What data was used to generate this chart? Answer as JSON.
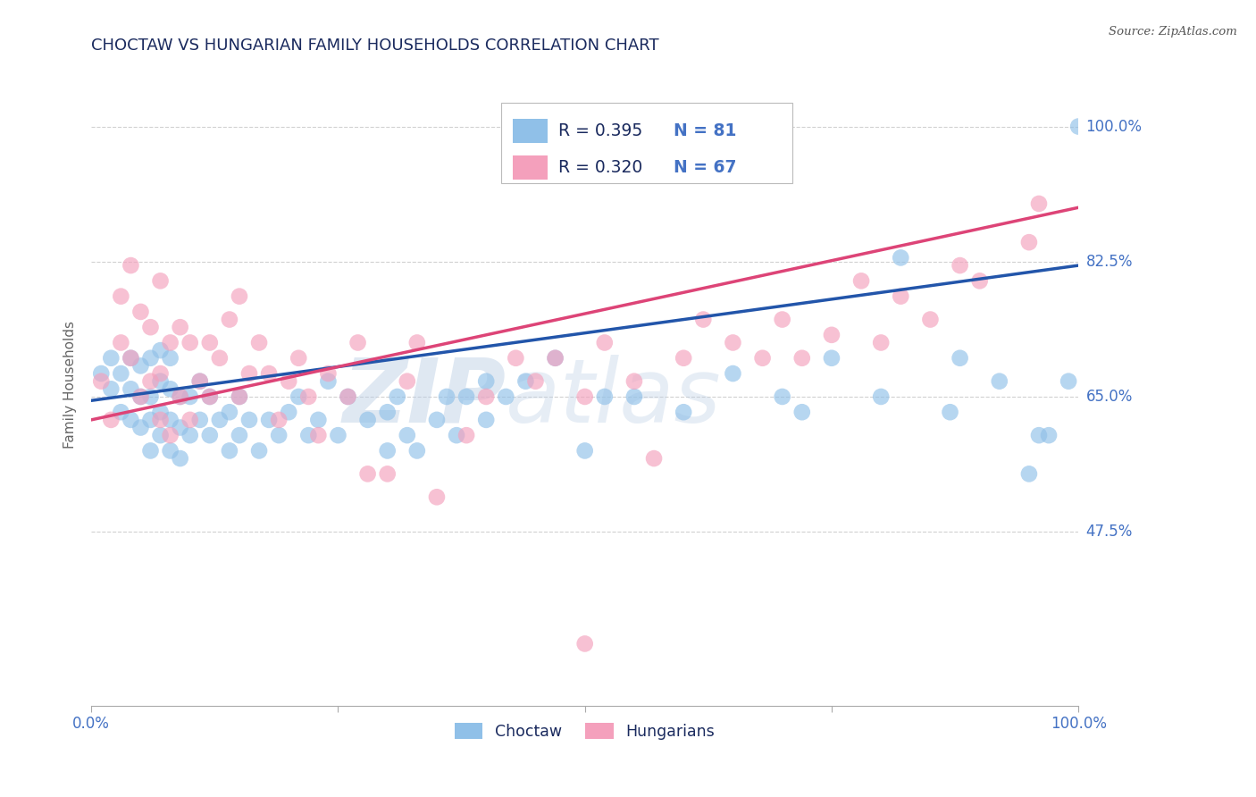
{
  "title": "CHOCTAW VS HUNGARIAN FAMILY HOUSEHOLDS CORRELATION CHART",
  "source": "Source: ZipAtlas.com",
  "ylabel": "Family Households",
  "xlim": [
    0.0,
    1.0
  ],
  "ylim": [
    0.25,
    1.08
  ],
  "y_tick_values": [
    0.475,
    0.65,
    0.825,
    1.0
  ],
  "y_tick_labels": [
    "47.5%",
    "65.0%",
    "82.5%",
    "100.0%"
  ],
  "choctaw_color": "#90C0E8",
  "hungarian_color": "#F4A0BC",
  "choctaw_line_color": "#2255AA",
  "hungarian_line_color": "#DD4477",
  "R_choctaw": 0.395,
  "N_choctaw": 81,
  "R_hungarian": 0.32,
  "N_hungarian": 67,
  "watermark_text": "ZIPatlas",
  "background_color": "#ffffff",
  "grid_color": "#cccccc",
  "title_color": "#1A2A5E",
  "axis_label_color": "#666666",
  "tick_label_color": "#4472C4",
  "legend_text_color": "#1A2A5E",
  "source_color": "#555555",
  "choctaw_x": [
    0.01,
    0.02,
    0.02,
    0.03,
    0.03,
    0.04,
    0.04,
    0.04,
    0.05,
    0.05,
    0.05,
    0.06,
    0.06,
    0.06,
    0.06,
    0.07,
    0.07,
    0.07,
    0.07,
    0.08,
    0.08,
    0.08,
    0.08,
    0.09,
    0.09,
    0.09,
    0.1,
    0.1,
    0.11,
    0.11,
    0.12,
    0.12,
    0.13,
    0.14,
    0.14,
    0.15,
    0.15,
    0.16,
    0.17,
    0.18,
    0.19,
    0.2,
    0.21,
    0.22,
    0.23,
    0.24,
    0.25,
    0.26,
    0.28,
    0.3,
    0.3,
    0.31,
    0.32,
    0.33,
    0.35,
    0.36,
    0.37,
    0.38,
    0.4,
    0.4,
    0.42,
    0.44,
    0.47,
    0.5,
    0.52,
    0.55,
    0.6,
    0.65,
    0.7,
    0.72,
    0.75,
    0.8,
    0.82,
    0.87,
    0.88,
    0.92,
    0.95,
    0.96,
    0.97,
    0.99,
    1.0
  ],
  "choctaw_y": [
    0.68,
    0.66,
    0.7,
    0.63,
    0.68,
    0.62,
    0.66,
    0.7,
    0.61,
    0.65,
    0.69,
    0.58,
    0.62,
    0.65,
    0.7,
    0.6,
    0.63,
    0.67,
    0.71,
    0.58,
    0.62,
    0.66,
    0.7,
    0.57,
    0.61,
    0.65,
    0.6,
    0.65,
    0.62,
    0.67,
    0.6,
    0.65,
    0.62,
    0.58,
    0.63,
    0.6,
    0.65,
    0.62,
    0.58,
    0.62,
    0.6,
    0.63,
    0.65,
    0.6,
    0.62,
    0.67,
    0.6,
    0.65,
    0.62,
    0.58,
    0.63,
    0.65,
    0.6,
    0.58,
    0.62,
    0.65,
    0.6,
    0.65,
    0.62,
    0.67,
    0.65,
    0.67,
    0.7,
    0.58,
    0.65,
    0.65,
    0.63,
    0.68,
    0.65,
    0.63,
    0.7,
    0.65,
    0.83,
    0.63,
    0.7,
    0.67,
    0.55,
    0.6,
    0.6,
    0.67,
    1.0
  ],
  "hungarian_x": [
    0.01,
    0.02,
    0.03,
    0.03,
    0.04,
    0.04,
    0.05,
    0.05,
    0.06,
    0.06,
    0.07,
    0.07,
    0.07,
    0.08,
    0.08,
    0.09,
    0.09,
    0.1,
    0.1,
    0.11,
    0.12,
    0.12,
    0.13,
    0.14,
    0.15,
    0.15,
    0.16,
    0.17,
    0.18,
    0.19,
    0.2,
    0.21,
    0.22,
    0.23,
    0.24,
    0.26,
    0.27,
    0.28,
    0.3,
    0.32,
    0.33,
    0.35,
    0.38,
    0.4,
    0.43,
    0.45,
    0.47,
    0.5,
    0.52,
    0.55,
    0.57,
    0.6,
    0.62,
    0.65,
    0.68,
    0.7,
    0.72,
    0.75,
    0.78,
    0.8,
    0.82,
    0.85,
    0.88,
    0.9,
    0.95,
    0.96,
    0.5
  ],
  "hungarian_y": [
    0.67,
    0.62,
    0.72,
    0.78,
    0.7,
    0.82,
    0.65,
    0.76,
    0.67,
    0.74,
    0.62,
    0.68,
    0.8,
    0.6,
    0.72,
    0.65,
    0.74,
    0.62,
    0.72,
    0.67,
    0.65,
    0.72,
    0.7,
    0.75,
    0.65,
    0.78,
    0.68,
    0.72,
    0.68,
    0.62,
    0.67,
    0.7,
    0.65,
    0.6,
    0.68,
    0.65,
    0.72,
    0.55,
    0.55,
    0.67,
    0.72,
    0.52,
    0.6,
    0.65,
    0.7,
    0.67,
    0.7,
    0.65,
    0.72,
    0.67,
    0.57,
    0.7,
    0.75,
    0.72,
    0.7,
    0.75,
    0.7,
    0.73,
    0.8,
    0.72,
    0.78,
    0.75,
    0.82,
    0.8,
    0.85,
    0.9,
    0.33
  ]
}
